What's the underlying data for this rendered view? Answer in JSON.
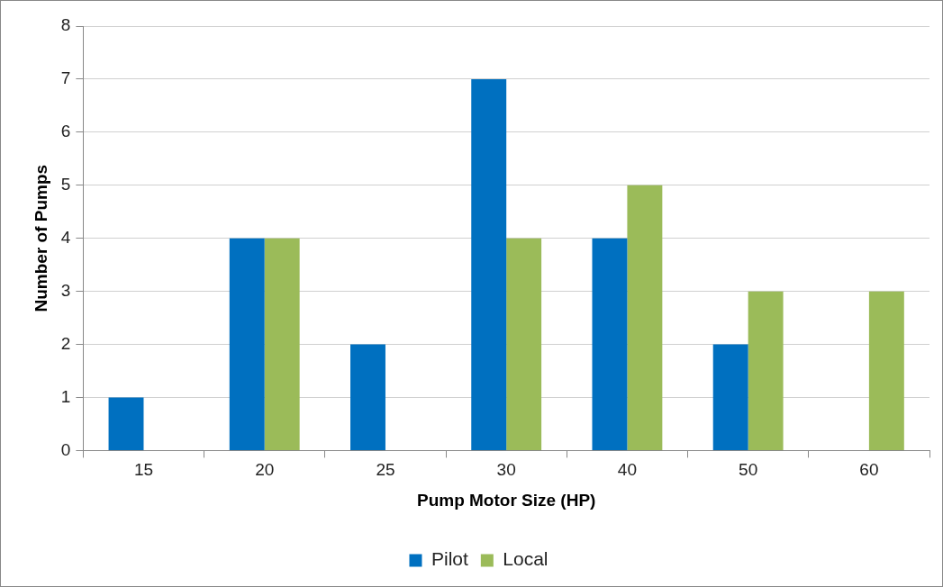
{
  "chart_data": {
    "type": "bar",
    "xlabel": "Pump Motor Size (HP)",
    "ylabel": "Number of Pumps",
    "categories": [
      "15",
      "20",
      "25",
      "30",
      "40",
      "50",
      "60"
    ],
    "series": [
      {
        "name": "Pilot",
        "color": "#0070c0",
        "values": [
          1,
          4,
          2,
          7,
          4,
          2,
          0
        ]
      },
      {
        "name": "Local",
        "color": "#9bbb59",
        "values": [
          0,
          4,
          0,
          4,
          5,
          3,
          3
        ]
      }
    ],
    "ylim": [
      0,
      8
    ],
    "yticks": [
      0,
      1,
      2,
      3,
      4,
      5,
      6,
      7,
      8
    ],
    "grid": "y",
    "legend": "bottom"
  }
}
